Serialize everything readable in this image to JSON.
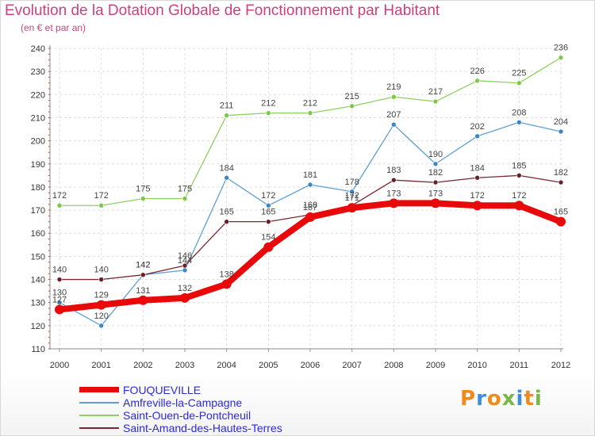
{
  "header": {
    "title": "Evolution de la Dotation Globale de Fonctionnement par Habitant",
    "subtitle": "(en € et par an)"
  },
  "logo": {
    "text": "Proxiti",
    "letter_colors": [
      "#f08a1c",
      "#3a8fd8",
      "#f08a1c",
      "#7ab648",
      "#3a8fd8",
      "#f08a1c",
      "#7ab648"
    ]
  },
  "chart_data": {
    "type": "line",
    "title": "Evolution de la Dotation Globale de Fonctionnement par Habitant",
    "subtitle": "(en € et par an)",
    "x": [
      "2000",
      "2001",
      "2002",
      "2003",
      "2004",
      "2005",
      "2006",
      "2007",
      "2008",
      "2009",
      "2010",
      "2011",
      "2012"
    ],
    "ylim": [
      110,
      240
    ],
    "yticks": [
      "110",
      "120",
      "130",
      "140",
      "150",
      "160",
      "170",
      "180",
      "190",
      "200",
      "210",
      "220",
      "230",
      "240"
    ],
    "grid": true,
    "legend_position": "bottom-left",
    "series": [
      {
        "name": "FOUQUEVILLE",
        "color": "#e8090b",
        "marker_color": "#e8090b",
        "thick": true,
        "values": [
          127,
          129,
          131,
          132,
          138,
          154,
          167,
          171,
          173,
          173,
          172,
          172,
          165
        ],
        "labels": [
          "127",
          "129",
          "131",
          "132",
          "138",
          "154",
          "167",
          "171",
          "173",
          "173",
          "172",
          "172",
          "165"
        ]
      },
      {
        "name": "Amfreville-la-Campagne",
        "color": "#5f9fd2",
        "marker_color": "#3a86c8",
        "thick": false,
        "values": [
          130,
          120,
          142,
          144,
          184,
          172,
          181,
          178,
          207,
          190,
          202,
          208,
          204
        ],
        "labels": [
          "130",
          "120",
          "142",
          "144",
          "184",
          "172",
          "181",
          "178",
          "207",
          "190",
          "202",
          "208",
          "204"
        ]
      },
      {
        "name": "Saint-Ouen-de-Pontcheuil",
        "color": "#8fd160",
        "marker_color": "#7cc84a",
        "thick": false,
        "values": [
          172,
          172,
          175,
          175,
          211,
          212,
          212,
          215,
          219,
          217,
          226,
          225,
          236
        ],
        "labels": [
          "172",
          "172",
          "175",
          "175",
          "211",
          "212",
          "212",
          "215",
          "219",
          "217",
          "226",
          "225",
          "236"
        ]
      },
      {
        "name": "Saint-Amand-des-Hautes-Terres",
        "color": "#7a2530",
        "marker_color": "#6b1f28",
        "thick": false,
        "values": [
          140,
          140,
          142,
          146,
          165,
          165,
          168,
          172,
          183,
          182,
          184,
          185,
          182
        ],
        "labels": [
          "140",
          "140",
          "142",
          "146",
          "165",
          "165",
          "168",
          "172",
          "183",
          "182",
          "184",
          "185",
          "182"
        ]
      }
    ]
  }
}
